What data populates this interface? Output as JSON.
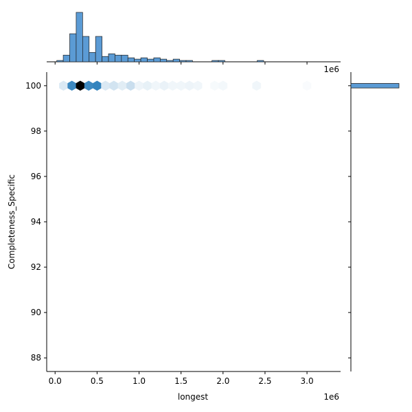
{
  "chart_data": {
    "type": "jointplot-hexbin",
    "xlabel": "longest",
    "ylabel": "Completeness_Specific",
    "x_offset_text": "1e6",
    "top_offset_text": "1e6",
    "xlim": [
      -0.1,
      3.4
    ],
    "ylim": [
      87.4,
      100.6
    ],
    "xticks": [
      0.0,
      0.5,
      1.0,
      1.5,
      2.0,
      2.5,
      3.0
    ],
    "xtick_labels": [
      "0.0",
      "0.5",
      "1.0",
      "1.5",
      "2.0",
      "2.5",
      "3.0"
    ],
    "yticks": [
      88,
      90,
      92,
      94,
      96,
      98,
      100
    ],
    "ytick_labels": [
      "88",
      "90",
      "92",
      "94",
      "96",
      "98",
      "100"
    ],
    "hexbin": {
      "y": 100,
      "x_centers": [
        0.1,
        0.2,
        0.3,
        0.4,
        0.5,
        0.6,
        0.7,
        0.8,
        0.9,
        1.0,
        1.1,
        1.2,
        1.3,
        1.4,
        1.5,
        1.6,
        1.7,
        1.9,
        2.0,
        2.4,
        3.0
      ],
      "intensity": [
        0.12,
        0.65,
        1.0,
        0.65,
        0.68,
        0.12,
        0.15,
        0.1,
        0.18,
        0.06,
        0.08,
        0.05,
        0.07,
        0.05,
        0.05,
        0.06,
        0.05,
        0.03,
        0.04,
        0.05,
        0.02
      ]
    },
    "top_histogram": {
      "bin_width": 0.077,
      "bin_starts": [
        0.02,
        0.097,
        0.174,
        0.251,
        0.328,
        0.405,
        0.482,
        0.559,
        0.636,
        0.713,
        0.79,
        0.867,
        0.944,
        1.021,
        1.098,
        1.175,
        1.252,
        1.329,
        1.406,
        1.483,
        1.56,
        1.637,
        1.714,
        1.791,
        1.868,
        1.945,
        2.022,
        2.099,
        2.176,
        2.253,
        2.33,
        2.407,
        2.484,
        2.561,
        2.638,
        2.715,
        2.792,
        2.869,
        2.946,
        3.023,
        3.1,
        3.177,
        3.254
      ],
      "counts": [
        1,
        5,
        21,
        37,
        19,
        7,
        19,
        4,
        6,
        5,
        5,
        3,
        2,
        3,
        2,
        3,
        2,
        1,
        2,
        1,
        1,
        0,
        0,
        0,
        1,
        1,
        0,
        0,
        0,
        0,
        0,
        1,
        0,
        0,
        0,
        0,
        0,
        0,
        0,
        0,
        0,
        0,
        0
      ]
    },
    "right_histogram": {
      "y_bin": [
        99.9,
        100.1
      ],
      "count": 1
    },
    "colors": {
      "hist_fill": "#5b9bd5",
      "hist_edge": "#1f1f1f",
      "hex_base": "#3182bd",
      "hex_dark": "#000000"
    },
    "grid": false,
    "legend": "none"
  }
}
